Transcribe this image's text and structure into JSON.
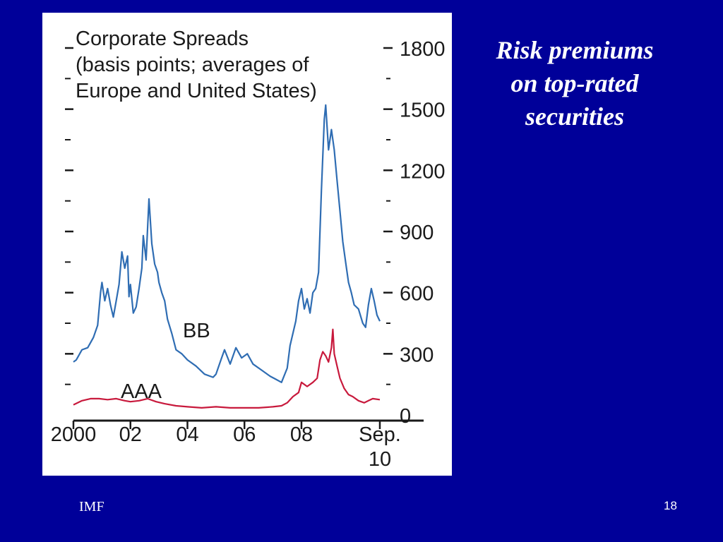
{
  "slide": {
    "heading_lines": [
      "Risk premiums",
      "on top-rated",
      "securities"
    ],
    "source": "IMF",
    "page_number": "18",
    "background_color": "#000099"
  },
  "chart_data": {
    "type": "line",
    "title_lines": [
      "Corporate Spreads",
      "(basis points; averages of",
      "Europe and United States)"
    ],
    "ylim": [
      0,
      1800
    ],
    "y_ticks": [
      0,
      300,
      600,
      900,
      1200,
      1500,
      1800
    ],
    "y_tick_labels": [
      "0",
      "300",
      "600",
      "900",
      "1200",
      "1500",
      "1800"
    ],
    "x_range": [
      2000,
      2010.8
    ],
    "x_ticks": [
      2000,
      2002,
      2004,
      2006,
      2008,
      2010.75
    ],
    "x_tick_labels": [
      "2000",
      "02",
      "04",
      "06",
      "08",
      "Sep.\n10"
    ],
    "grid": false,
    "series": [
      {
        "name": "BB",
        "color": "#2f6db3",
        "points": [
          [
            2000.0,
            260
          ],
          [
            2000.1,
            270
          ],
          [
            2000.3,
            320
          ],
          [
            2000.5,
            330
          ],
          [
            2000.7,
            380
          ],
          [
            2000.85,
            440
          ],
          [
            2000.95,
            600
          ],
          [
            2001.0,
            650
          ],
          [
            2001.1,
            560
          ],
          [
            2001.2,
            620
          ],
          [
            2001.3,
            540
          ],
          [
            2001.4,
            480
          ],
          [
            2001.5,
            560
          ],
          [
            2001.6,
            640
          ],
          [
            2001.7,
            800
          ],
          [
            2001.8,
            720
          ],
          [
            2001.9,
            780
          ],
          [
            2001.95,
            580
          ],
          [
            2002.0,
            640
          ],
          [
            2002.1,
            500
          ],
          [
            2002.2,
            530
          ],
          [
            2002.3,
            620
          ],
          [
            2002.4,
            720
          ],
          [
            2002.45,
            880
          ],
          [
            2002.55,
            760
          ],
          [
            2002.65,
            1060
          ],
          [
            2002.75,
            840
          ],
          [
            2002.85,
            740
          ],
          [
            2002.95,
            700
          ],
          [
            2003.0,
            650
          ],
          [
            2003.1,
            600
          ],
          [
            2003.2,
            560
          ],
          [
            2003.3,
            470
          ],
          [
            2003.45,
            400
          ],
          [
            2003.6,
            320
          ],
          [
            2003.8,
            300
          ],
          [
            2004.0,
            270
          ],
          [
            2004.3,
            240
          ],
          [
            2004.6,
            200
          ],
          [
            2004.9,
            185
          ],
          [
            2005.0,
            200
          ],
          [
            2005.2,
            280
          ],
          [
            2005.3,
            320
          ],
          [
            2005.5,
            250
          ],
          [
            2005.7,
            330
          ],
          [
            2005.9,
            280
          ],
          [
            2006.1,
            300
          ],
          [
            2006.3,
            250
          ],
          [
            2006.6,
            220
          ],
          [
            2006.9,
            190
          ],
          [
            2007.1,
            175
          ],
          [
            2007.3,
            160
          ],
          [
            2007.5,
            230
          ],
          [
            2007.6,
            340
          ],
          [
            2007.8,
            460
          ],
          [
            2007.9,
            560
          ],
          [
            2008.0,
            620
          ],
          [
            2008.1,
            520
          ],
          [
            2008.2,
            570
          ],
          [
            2008.3,
            500
          ],
          [
            2008.4,
            600
          ],
          [
            2008.5,
            620
          ],
          [
            2008.6,
            700
          ],
          [
            2008.7,
            1100
          ],
          [
            2008.8,
            1450
          ],
          [
            2008.85,
            1520
          ],
          [
            2008.95,
            1300
          ],
          [
            2009.05,
            1400
          ],
          [
            2009.15,
            1300
          ],
          [
            2009.25,
            1150
          ],
          [
            2009.35,
            1000
          ],
          [
            2009.45,
            850
          ],
          [
            2009.55,
            750
          ],
          [
            2009.65,
            650
          ],
          [
            2009.75,
            600
          ],
          [
            2009.85,
            540
          ],
          [
            2010.0,
            520
          ],
          [
            2010.15,
            450
          ],
          [
            2010.25,
            430
          ],
          [
            2010.35,
            540
          ],
          [
            2010.45,
            620
          ],
          [
            2010.55,
            560
          ],
          [
            2010.65,
            490
          ],
          [
            2010.75,
            460
          ]
        ]
      },
      {
        "name": "AAA",
        "color": "#c8193c",
        "points": [
          [
            2000.0,
            50
          ],
          [
            2000.3,
            70
          ],
          [
            2000.6,
            80
          ],
          [
            2000.9,
            80
          ],
          [
            2001.2,
            75
          ],
          [
            2001.5,
            80
          ],
          [
            2001.8,
            70
          ],
          [
            2002.0,
            65
          ],
          [
            2002.3,
            70
          ],
          [
            2002.6,
            80
          ],
          [
            2002.9,
            65
          ],
          [
            2003.2,
            55
          ],
          [
            2003.6,
            45
          ],
          [
            2004.0,
            40
          ],
          [
            2004.5,
            35
          ],
          [
            2005.0,
            40
          ],
          [
            2005.5,
            35
          ],
          [
            2006.0,
            35
          ],
          [
            2006.5,
            35
          ],
          [
            2007.0,
            40
          ],
          [
            2007.3,
            45
          ],
          [
            2007.5,
            60
          ],
          [
            2007.7,
            90
          ],
          [
            2007.9,
            110
          ],
          [
            2008.0,
            160
          ],
          [
            2008.2,
            140
          ],
          [
            2008.4,
            160
          ],
          [
            2008.55,
            180
          ],
          [
            2008.65,
            270
          ],
          [
            2008.75,
            310
          ],
          [
            2008.85,
            290
          ],
          [
            2008.95,
            260
          ],
          [
            2009.05,
            330
          ],
          [
            2009.1,
            420
          ],
          [
            2009.15,
            300
          ],
          [
            2009.25,
            240
          ],
          [
            2009.35,
            180
          ],
          [
            2009.5,
            130
          ],
          [
            2009.65,
            100
          ],
          [
            2009.8,
            90
          ],
          [
            2010.0,
            70
          ],
          [
            2010.2,
            60
          ],
          [
            2010.35,
            70
          ],
          [
            2010.5,
            80
          ],
          [
            2010.75,
            75
          ]
        ]
      }
    ],
    "series_labels": [
      "BB",
      "AAA"
    ]
  }
}
